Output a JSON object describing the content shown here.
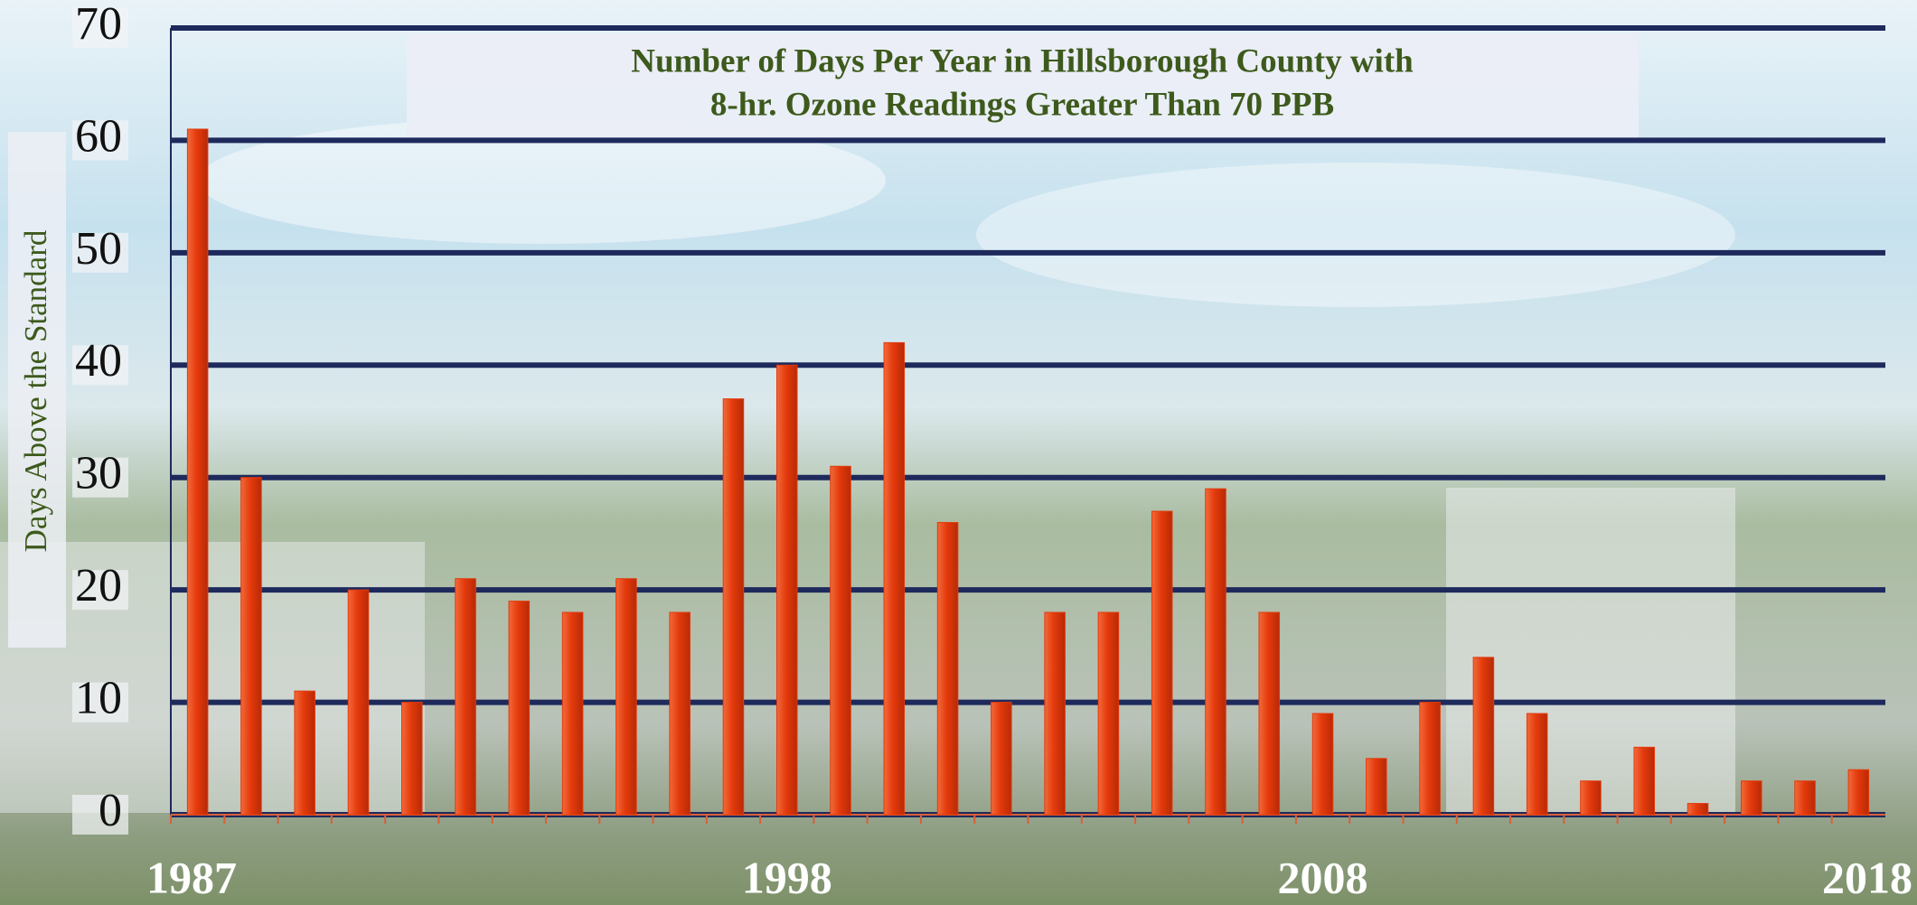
{
  "chart_data": {
    "type": "bar",
    "title": [
      "Number of Days Per Year in Hillsborough County with",
      "8-hr. Ozone Readings Greater Than 70 PPB"
    ],
    "y_label": "Days Above the Standard",
    "categories": [
      "1987",
      null,
      null,
      null,
      null,
      null,
      null,
      null,
      null,
      null,
      null,
      "1998",
      null,
      null,
      null,
      null,
      null,
      null,
      null,
      null,
      null,
      "2008",
      null,
      null,
      null,
      null,
      null,
      null,
      null,
      null,
      null,
      "2018"
    ],
    "values": [
      61,
      30,
      11,
      20,
      10,
      21,
      19,
      18,
      21,
      18,
      37,
      40,
      31,
      42,
      26,
      10,
      18,
      18,
      27,
      29,
      18,
      9,
      5,
      10,
      14,
      9,
      3,
      6,
      1,
      3,
      3,
      4
    ],
    "color": "#e43a0c",
    "ylim": [
      0,
      70
    ],
    "yticks": [
      0,
      10,
      20,
      30,
      40,
      50,
      60,
      70
    ],
    "grid": true
  }
}
